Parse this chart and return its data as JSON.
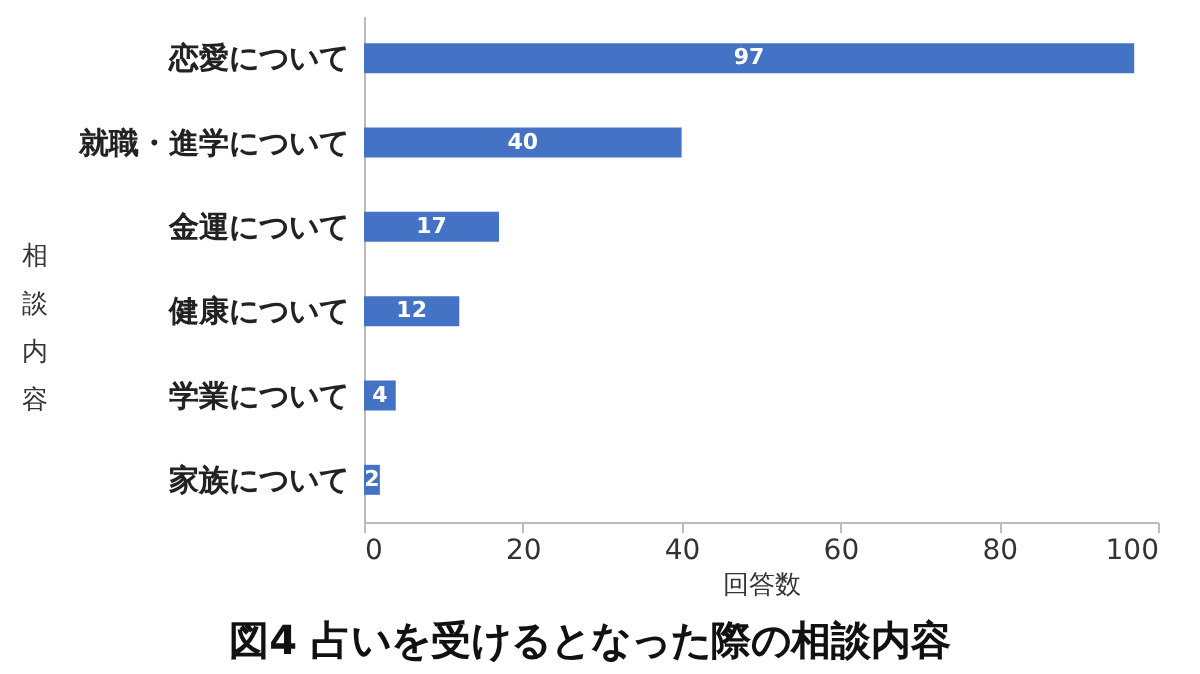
{
  "chart_data": {
    "type": "bar",
    "orientation": "horizontal",
    "title": "図4 占いを受けるとなった際の相談内容",
    "categories": [
      "恋愛について",
      "就職・進学について",
      "金運について",
      "健康について",
      "学業について",
      "家族について"
    ],
    "values": [
      97,
      40,
      17,
      12,
      4,
      2
    ],
    "color": "#4472c4",
    "xlabel": "回答数",
    "ylabel": "相談内容",
    "xlim": [
      0,
      100
    ],
    "xticks": [
      0,
      20,
      40,
      60,
      80,
      100
    ],
    "data_labels": true
  }
}
